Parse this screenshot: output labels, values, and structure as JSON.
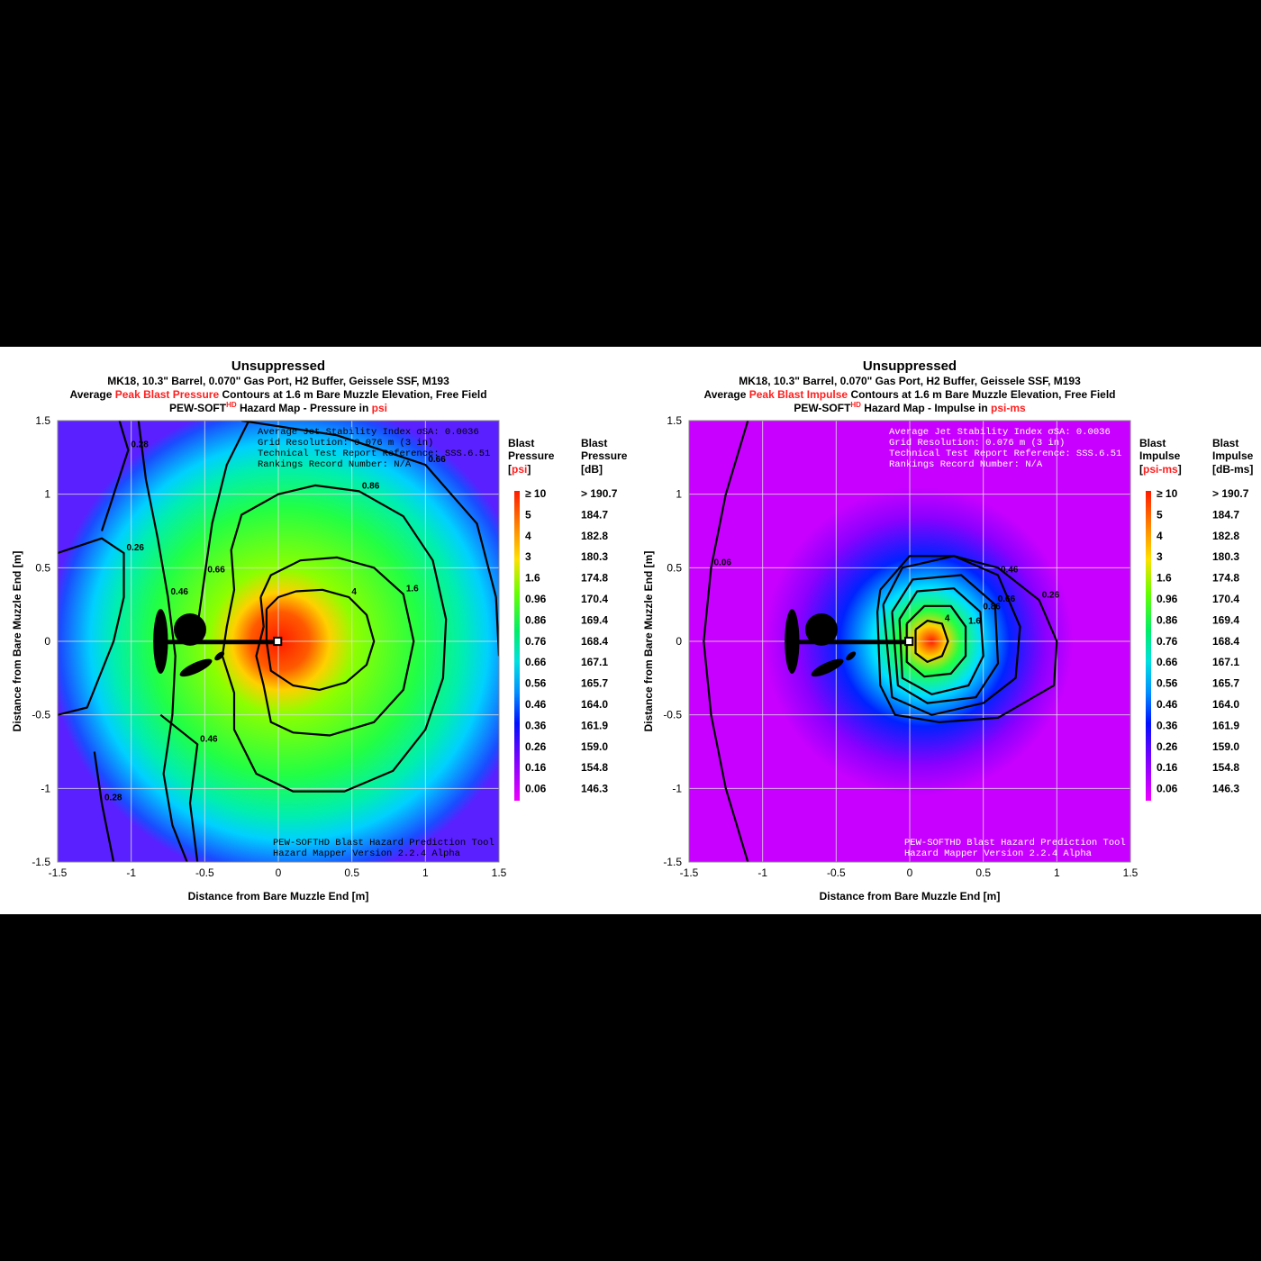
{
  "charts": [
    {
      "id": "pressure",
      "title": "Unsuppressed",
      "subtitle": "MK18, 10.3\" Barrel, 0.070\" Gas Port, H2 Buffer, Geissele SSF, M193",
      "line3_pre": "Average ",
      "line3_red": "Peak Blast Pressure",
      "line3_post": " Contours at 1.6 m Bare Muzzle Elevation, Free Field",
      "line4_a": "PEW-SOFT",
      "line4_sup": "HD",
      "line4_b": " Hazard Map - Pressure in ",
      "line4_red": "psi",
      "xlabel": "Distance from Bare Muzzle End [m]",
      "ylabel": "Distance from Bare Muzzle End [m]",
      "info": [
        "Average Jet Stability Index σSA: 0.0036",
        "Grid Resolution: 0.076 m (3 in)",
        "Technical Test Report Reference: SSS.6.51",
        "Rankings Record Number: N/A"
      ],
      "footer": [
        "PEW-SOFTHD Blast Hazard Prediction Tool",
        "Hazard Mapper Version 2.2.4 Alpha"
      ],
      "cb_head_left": [
        "Blast",
        "Pressure"
      ],
      "cb_unit_left": "psi",
      "cb_head_right": [
        "Blast",
        "Pressure",
        "[dB]"
      ]
    },
    {
      "id": "impulse",
      "title": "Unsuppressed",
      "subtitle": "MK18, 10.3\" Barrel, 0.070\" Gas Port, H2 Buffer, Geissele SSF, M193",
      "line3_pre": "Average ",
      "line3_red": "Peak Blast Impulse",
      "line3_post": " Contours at 1.6 m Bare Muzzle Elevation, Free Field",
      "line4_a": "PEW-SOFT",
      "line4_sup": "HD",
      "line4_b": " Hazard Map - Impulse in ",
      "line4_red": "psi-ms",
      "xlabel": "Distance from Bare Muzzle End [m]",
      "ylabel": "Distance from Bare Muzzle End [m]",
      "info": [
        "Average Jet Stability Index σSA: 0.0036",
        "Grid Resolution: 0.076 m (3 in)",
        "Technical Test Report Reference: SSS.6.51",
        "Rankings Record Number: N/A"
      ],
      "footer": [
        "PEW-SOFTHD Blast Hazard Prediction Tool",
        "Hazard Mapper Version 2.2.4 Alpha"
      ],
      "cb_head_left": [
        "Blast",
        "Impulse"
      ],
      "cb_unit_left": "psi-ms",
      "cb_head_right": [
        "Blast",
        "Impulse",
        "[dB-ms]"
      ]
    }
  ],
  "colorbar_levels": [
    "≥ 10",
    "5",
    "4",
    "3",
    "1.6",
    "0.96",
    "0.86",
    "0.76",
    "0.66",
    "0.56",
    "0.46",
    "0.36",
    "0.26",
    "0.16",
    "0.06"
  ],
  "colorbar_db": [
    "> 190.7",
    "184.7",
    "182.8",
    "180.3",
    "174.8",
    "170.4",
    "169.4",
    "168.4",
    "167.1",
    "165.7",
    "164.0",
    "161.9",
    "159.0",
    "154.8",
    "146.3"
  ],
  "colors": {
    "scale": [
      "#ff1a00",
      "#ff7a00",
      "#ffc000",
      "#e6f000",
      "#7cff00",
      "#3cff3c",
      "#00e89a",
      "#00f0f0",
      "#00b4ff",
      "#1a5cff",
      "#0000ff",
      "#6a00ff",
      "#b000ff",
      "#ee00ff"
    ],
    "impulse_bg": "#c800ff",
    "contour": "#000000"
  },
  "chart_data": [
    {
      "type": "heatmap",
      "name": "pressure",
      "xlim": [
        -1.5,
        1.5
      ],
      "ylim": [
        -1.5,
        1.5
      ],
      "xticks": [
        "-1.5",
        "-1",
        "-0.5",
        "0",
        "0.5",
        "1",
        "1.5"
      ],
      "yticks": [
        "1.5",
        "1",
        "0.5",
        "0",
        "-0.5",
        "-1",
        "-1.5"
      ],
      "grid": true,
      "contours": [
        {
          "label": "4",
          "points": [
            [
              -0.08,
              0.22
            ],
            [
              0.0,
              0.3
            ],
            [
              0.12,
              0.34
            ],
            [
              0.3,
              0.35
            ],
            [
              0.48,
              0.3
            ],
            [
              0.6,
              0.18
            ],
            [
              0.65,
              0.0
            ],
            [
              0.6,
              -0.16
            ],
            [
              0.46,
              -0.28
            ],
            [
              0.28,
              -0.33
            ],
            [
              0.1,
              -0.3
            ],
            [
              -0.05,
              -0.2
            ],
            [
              -0.08,
              0.0
            ],
            [
              -0.08,
              0.22
            ]
          ]
        },
        {
          "label": "1.6",
          "points": [
            [
              -0.12,
              0.3
            ],
            [
              -0.05,
              0.45
            ],
            [
              0.15,
              0.55
            ],
            [
              0.4,
              0.57
            ],
            [
              0.65,
              0.5
            ],
            [
              0.85,
              0.32
            ],
            [
              0.92,
              0.0
            ],
            [
              0.85,
              -0.33
            ],
            [
              0.65,
              -0.55
            ],
            [
              0.35,
              -0.64
            ],
            [
              0.1,
              -0.62
            ],
            [
              -0.05,
              -0.55
            ],
            [
              -0.1,
              -0.3
            ],
            [
              -0.15,
              -0.1
            ],
            [
              -0.1,
              0.1
            ],
            [
              -0.12,
              0.3
            ]
          ]
        },
        {
          "label": "0.86",
          "points": [
            [
              -0.35,
              0.1
            ],
            [
              -0.3,
              0.35
            ],
            [
              -0.32,
              0.62
            ],
            [
              -0.25,
              0.86
            ],
            [
              0.0,
              1.0
            ],
            [
              0.25,
              1.06
            ],
            [
              0.55,
              1.02
            ],
            [
              0.85,
              0.85
            ],
            [
              1.05,
              0.55
            ],
            [
              1.14,
              0.15
            ],
            [
              1.12,
              -0.25
            ],
            [
              1.0,
              -0.6
            ],
            [
              0.78,
              -0.88
            ],
            [
              0.45,
              -1.02
            ],
            [
              0.1,
              -1.02
            ],
            [
              -0.15,
              -0.9
            ],
            [
              -0.3,
              -0.6
            ],
            [
              -0.3,
              -0.35
            ],
            [
              -0.38,
              -0.1
            ],
            [
              -0.35,
              0.1
            ]
          ]
        },
        {
          "label": "0.66",
          "points": [
            [
              -0.55,
              0.1
            ],
            [
              -0.5,
              0.45
            ],
            [
              -0.45,
              0.8
            ],
            [
              -0.35,
              1.2
            ],
            [
              -0.2,
              1.5
            ]
          ]
        },
        {
          "label": "0.46",
          "points": [
            [
              -0.95,
              1.5
            ],
            [
              -0.9,
              1.1
            ],
            [
              -0.82,
              0.7
            ],
            [
              -0.75,
              0.3
            ],
            [
              -0.7,
              -0.1
            ],
            [
              -0.72,
              -0.5
            ],
            [
              -0.78,
              -0.9
            ],
            [
              -0.72,
              -1.25
            ],
            [
              -0.62,
              -1.5
            ]
          ]
        },
        {
          "label": "0.66 outer",
          "points": [
            [
              -0.25,
              1.5
            ],
            [
              0.4,
              1.4
            ],
            [
              1.0,
              1.2
            ],
            [
              1.35,
              0.8
            ],
            [
              1.48,
              0.3
            ],
            [
              1.5,
              -0.1
            ]
          ]
        },
        {
          "label": "0.26",
          "points": [
            [
              -1.5,
              0.6
            ],
            [
              -1.2,
              0.7
            ],
            [
              -1.05,
              0.6
            ],
            [
              -1.05,
              0.3
            ],
            [
              -1.12,
              0.0
            ],
            [
              -1.3,
              -0.45
            ],
            [
              -1.5,
              -0.5
            ]
          ]
        },
        {
          "label": "0.28",
          "points": [
            [
              -1.08,
              1.5
            ],
            [
              -1.02,
              1.3
            ],
            [
              -1.2,
              0.75
            ]
          ]
        },
        {
          "label": "0.28 low",
          "points": [
            [
              -1.25,
              -0.75
            ],
            [
              -1.2,
              -1.1
            ],
            [
              -1.12,
              -1.5
            ]
          ]
        },
        {
          "label": "0.46 low",
          "points": [
            [
              -0.8,
              -0.5
            ],
            [
              -0.55,
              -0.7
            ],
            [
              -0.6,
              -1.1
            ],
            [
              -0.55,
              -1.5
            ]
          ]
        }
      ]
    },
    {
      "type": "heatmap",
      "name": "impulse",
      "xlim": [
        -1.5,
        1.5
      ],
      "ylim": [
        -1.5,
        1.5
      ],
      "xticks": [
        "-1.5",
        "-1",
        "-0.5",
        "0",
        "0.5",
        "1",
        "1.5"
      ],
      "yticks": [
        "1.5",
        "1",
        "0.5",
        "0",
        "-0.5",
        "-1",
        "-1.5"
      ],
      "grid": true,
      "contours": [
        {
          "label": "4",
          "points": [
            [
              0.04,
              0.08
            ],
            [
              0.12,
              0.14
            ],
            [
              0.22,
              0.12
            ],
            [
              0.26,
              0.0
            ],
            [
              0.22,
              -0.1
            ],
            [
              0.12,
              -0.14
            ],
            [
              0.04,
              -0.08
            ],
            [
              0.04,
              0.08
            ]
          ]
        },
        {
          "label": "1.6",
          "points": [
            [
              -0.02,
              0.12
            ],
            [
              0.1,
              0.24
            ],
            [
              0.28,
              0.24
            ],
            [
              0.38,
              0.1
            ],
            [
              0.38,
              -0.1
            ],
            [
              0.28,
              -0.22
            ],
            [
              0.1,
              -0.24
            ],
            [
              -0.02,
              -0.14
            ],
            [
              -0.02,
              0.12
            ]
          ]
        },
        {
          "label": "0.86",
          "points": [
            [
              -0.07,
              0.15
            ],
            [
              0.05,
              0.34
            ],
            [
              0.3,
              0.36
            ],
            [
              0.48,
              0.2
            ],
            [
              0.5,
              -0.1
            ],
            [
              0.4,
              -0.3
            ],
            [
              0.15,
              -0.36
            ],
            [
              -0.05,
              -0.25
            ],
            [
              -0.07,
              0.15
            ]
          ]
        },
        {
          "label": "0.66",
          "points": [
            [
              -0.12,
              0.2
            ],
            [
              0.02,
              0.42
            ],
            [
              0.35,
              0.45
            ],
            [
              0.58,
              0.25
            ],
            [
              0.6,
              -0.15
            ],
            [
              0.45,
              -0.38
            ],
            [
              0.12,
              -0.42
            ],
            [
              -0.08,
              -0.3
            ],
            [
              -0.12,
              0.2
            ]
          ]
        },
        {
          "label": "0.46",
          "points": [
            [
              -0.18,
              0.25
            ],
            [
              -0.05,
              0.5
            ],
            [
              0.3,
              0.58
            ],
            [
              0.6,
              0.45
            ],
            [
              0.75,
              0.1
            ],
            [
              0.72,
              -0.25
            ],
            [
              0.5,
              -0.42
            ],
            [
              0.15,
              -0.5
            ],
            [
              -0.12,
              -0.38
            ],
            [
              -0.18,
              0.25
            ]
          ]
        },
        {
          "label": "0.26",
          "points": [
            [
              -0.2,
              0.35
            ],
            [
              0.0,
              0.58
            ],
            [
              0.3,
              0.58
            ],
            [
              0.6,
              0.5
            ],
            [
              0.88,
              0.28
            ],
            [
              1.0,
              0.0
            ],
            [
              0.98,
              -0.3
            ],
            [
              0.6,
              -0.52
            ],
            [
              0.2,
              -0.55
            ],
            [
              -0.1,
              -0.5
            ],
            [
              -0.2,
              -0.3
            ],
            [
              -0.22,
              0.2
            ],
            [
              -0.2,
              0.35
            ]
          ]
        },
        {
          "label": "0.06",
          "points": [
            [
              -1.1,
              1.5
            ],
            [
              -1.25,
              1.0
            ],
            [
              -1.35,
              0.5
            ],
            [
              -1.4,
              0.0
            ],
            [
              -1.35,
              -0.5
            ],
            [
              -1.25,
              -1.0
            ],
            [
              -1.1,
              -1.5
            ]
          ]
        }
      ]
    }
  ]
}
